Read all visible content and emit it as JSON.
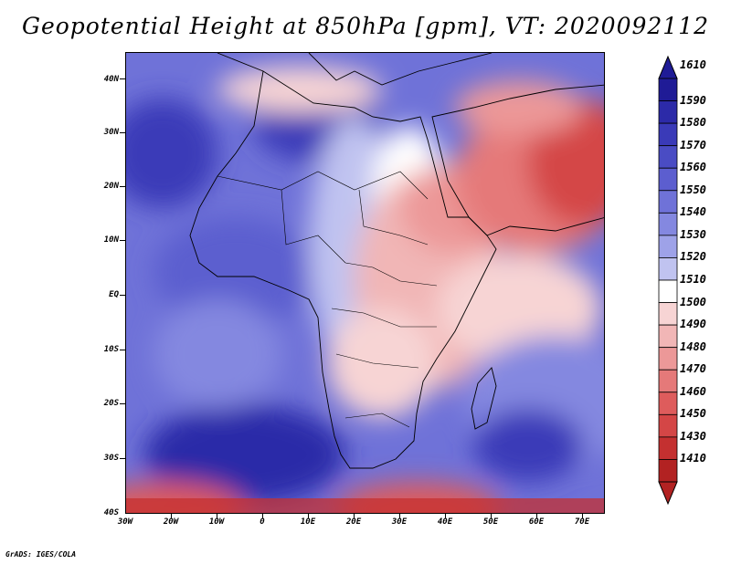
{
  "title": "Geopotential Height at 850hPa [gpm], VT: 2020092112",
  "credit": "GrADS: IGES/COLA",
  "map": {
    "lat_ticks": [
      "40N",
      "30N",
      "20N",
      "10N",
      "EQ",
      "10S",
      "20S",
      "30S",
      "40S"
    ],
    "lon_ticks": [
      "30W",
      "20W",
      "10W",
      "0",
      "10E",
      "20E",
      "30E",
      "40E",
      "50E",
      "60E",
      "70E"
    ],
    "lon_range": [
      -30,
      75
    ],
    "lat_range": [
      -40,
      45
    ]
  },
  "colorbar": {
    "labels": [
      "1610",
      "1590",
      "1580",
      "1570",
      "1560",
      "1550",
      "1540",
      "1530",
      "1520",
      "1510",
      "1500",
      "1490",
      "1480",
      "1470",
      "1460",
      "1450",
      "1430",
      "1410"
    ],
    "colors": [
      "#1f1b96",
      "#2c2aa8",
      "#3a3ab8",
      "#4a4cc4",
      "#5c5ecf",
      "#6f72d8",
      "#8488e0",
      "#9ea2e8",
      "#c0c3f0",
      "#ffffff",
      "#f7d4d4",
      "#f1b6b6",
      "#ec9898",
      "#e57979",
      "#de5c5c",
      "#d44646",
      "#c43030",
      "#b22222"
    ]
  }
}
